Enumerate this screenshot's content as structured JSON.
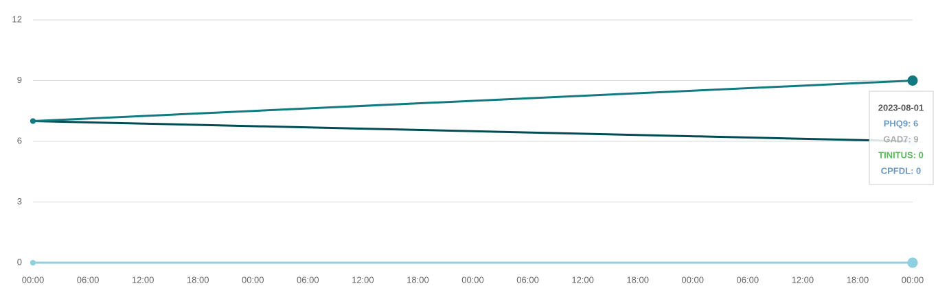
{
  "chart_data": {
    "type": "line",
    "x": [
      0,
      96
    ],
    "xlim": [
      0,
      96
    ],
    "xticks": [
      {
        "value": 0,
        "label": "00:00"
      },
      {
        "value": 6,
        "label": "06:00"
      },
      {
        "value": 12,
        "label": "12:00"
      },
      {
        "value": 18,
        "label": "18:00"
      },
      {
        "value": 24,
        "label": "00:00"
      },
      {
        "value": 30,
        "label": "06:00"
      },
      {
        "value": 36,
        "label": "12:00"
      },
      {
        "value": 42,
        "label": "18:00"
      },
      {
        "value": 48,
        "label": "00:00"
      },
      {
        "value": 54,
        "label": "06:00"
      },
      {
        "value": 60,
        "label": "12:00"
      },
      {
        "value": 66,
        "label": "18:00"
      },
      {
        "value": 72,
        "label": "00:00"
      },
      {
        "value": 78,
        "label": "06:00"
      },
      {
        "value": 84,
        "label": "12:00"
      },
      {
        "value": 90,
        "label": "18:00"
      },
      {
        "value": 96,
        "label": "00:00"
      }
    ],
    "ylim": [
      0,
      12
    ],
    "yticks": [
      0,
      3,
      6,
      9,
      12
    ],
    "grid": true,
    "series": [
      {
        "name": "CPFDL",
        "color": "#8ecfe0",
        "values": [
          0,
          0
        ]
      },
      {
        "name": "TINITUS",
        "color": "#8ecfe0",
        "values": [
          0,
          0
        ]
      },
      {
        "name": "PHQ9",
        "color": "#004c55",
        "values": [
          7,
          6
        ]
      },
      {
        "name": "GAD7",
        "color": "#107a80",
        "values": [
          7,
          9
        ]
      }
    ],
    "tooltip": {
      "title": "2023-08-01",
      "items": [
        {
          "text": "PHQ9: 6",
          "color": "#6a98c0"
        },
        {
          "text": "GAD7: 9",
          "color": "#b0b0b0"
        },
        {
          "text": "TINITUS: 0",
          "color": "#5cb85c"
        },
        {
          "text": "CPFDL: 0",
          "color": "#6a98c0"
        }
      ]
    }
  }
}
